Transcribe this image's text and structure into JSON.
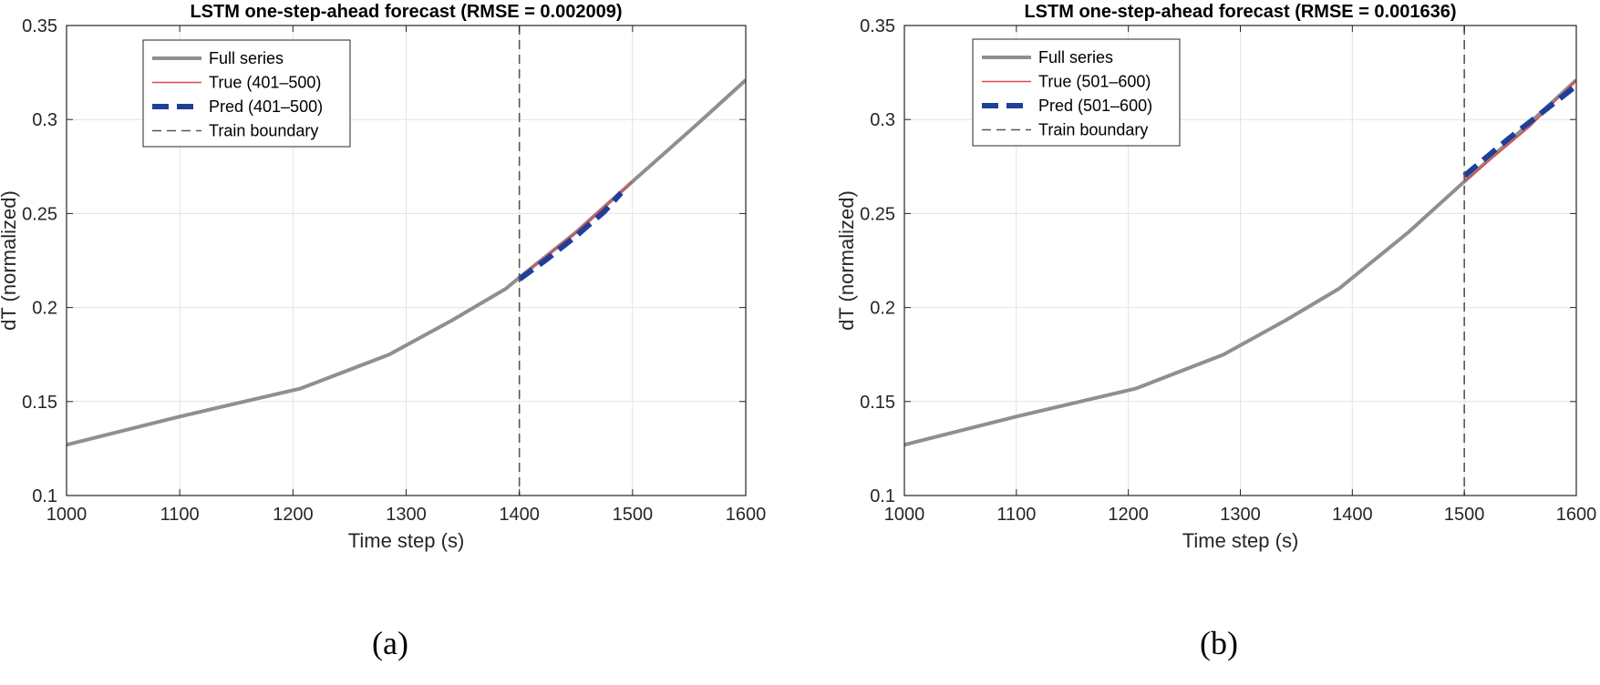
{
  "chart_data": [
    {
      "type": "line",
      "title": "LSTM one-step-ahead forecast (RMSE = 0.002009)",
      "xlabel": "Time step (s)",
      "ylabel": "dT (normalized)",
      "xlim": [
        1000,
        1600
      ],
      "ylim": [
        0.1,
        0.35
      ],
      "xticks": [
        1000,
        1100,
        1200,
        1300,
        1400,
        1500,
        1600
      ],
      "xtick_labels": [
        "1000",
        "1100",
        "1200",
        "1300",
        "1400",
        "1500",
        "1600"
      ],
      "yticks": [
        0.1,
        0.15,
        0.2,
        0.25,
        0.3,
        0.35
      ],
      "ytick_labels": [
        "0.1",
        "0.15",
        "0.2",
        "0.25",
        "0.3",
        "0.35"
      ],
      "grid": true,
      "legend_position": "top-left",
      "caption": "(a)",
      "train_boundary": 1400,
      "series": [
        {
          "name": "Full series",
          "style": "solid-thick",
          "color": "#8f8f8f",
          "x": [
            1000,
            1100,
            1207,
            1285,
            1340,
            1388,
            1400,
            1450,
            1500,
            1558,
            1600
          ],
          "values": [
            0.127,
            0.142,
            0.157,
            0.175,
            0.193,
            0.21,
            0.216,
            0.24,
            0.267,
            0.298,
            0.321
          ]
        },
        {
          "name": "True (401–500)",
          "style": "solid-thin",
          "color": "#e0474c",
          "x": [
            1400,
            1450,
            1500
          ],
          "values": [
            0.216,
            0.24,
            0.267
          ]
        },
        {
          "name": "Pred (401–500)",
          "style": "dashed-thick",
          "color": "#1f3f99",
          "x": [
            1400,
            1425,
            1450,
            1475,
            1490
          ],
          "values": [
            0.215,
            0.226,
            0.238,
            0.251,
            0.261
          ]
        },
        {
          "name": "Train boundary",
          "style": "dashed-thin",
          "color": "#555555"
        }
      ]
    },
    {
      "type": "line",
      "title": "LSTM one-step-ahead forecast (RMSE = 0.001636)",
      "xlabel": "Time step (s)",
      "ylabel": "dT (normalized)",
      "xlim": [
        1000,
        1600
      ],
      "ylim": [
        0.1,
        0.35
      ],
      "xticks": [
        1000,
        1100,
        1200,
        1300,
        1400,
        1500,
        1600
      ],
      "xtick_labels": [
        "1000",
        "1100",
        "1200",
        "1300",
        "1400",
        "1500",
        "1600"
      ],
      "yticks": [
        0.1,
        0.15,
        0.2,
        0.25,
        0.3,
        0.35
      ],
      "ytick_labels": [
        "0.1",
        "0.15",
        "0.2",
        "0.25",
        "0.3",
        "0.35"
      ],
      "grid": true,
      "legend_position": "top-left",
      "caption": "(b)",
      "train_boundary": 1500,
      "series": [
        {
          "name": "Full series",
          "style": "solid-thick",
          "color": "#8f8f8f",
          "x": [
            1000,
            1100,
            1207,
            1285,
            1340,
            1388,
            1450,
            1500,
            1558,
            1600
          ],
          "values": [
            0.127,
            0.142,
            0.157,
            0.175,
            0.193,
            0.21,
            0.24,
            0.267,
            0.298,
            0.321
          ]
        },
        {
          "name": "True (501–600)",
          "style": "solid-thin",
          "color": "#e0474c",
          "x": [
            1500,
            1558,
            1600
          ],
          "values": [
            0.267,
            0.296,
            0.321
          ]
        },
        {
          "name": "Pred (501–600)",
          "style": "dashed-thick",
          "color": "#1f3f99",
          "x": [
            1500,
            1540,
            1570,
            1600
          ],
          "values": [
            0.27,
            0.29,
            0.304,
            0.318
          ]
        },
        {
          "name": "Train boundary",
          "style": "dashed-thin",
          "color": "#555555"
        }
      ]
    }
  ]
}
